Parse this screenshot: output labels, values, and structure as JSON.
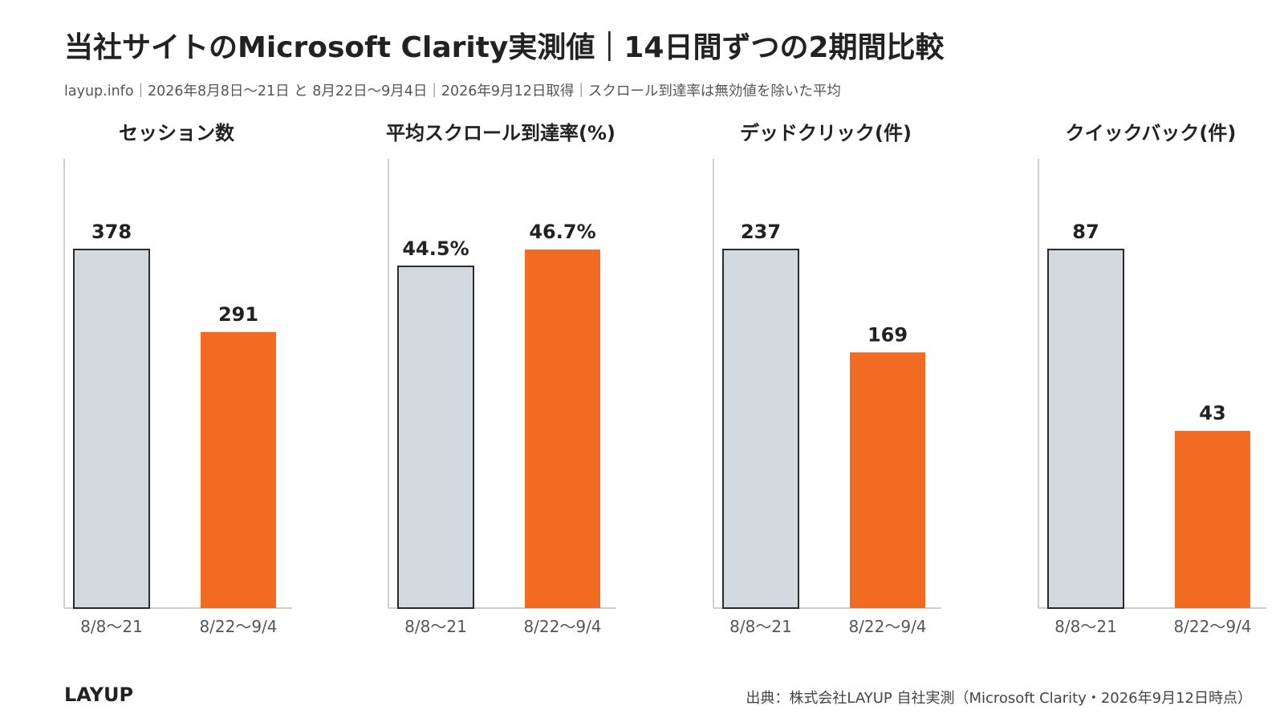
{
  "header": {
    "title": "当社サイトのMicrosoft Clarity実測値｜14日間ずつの2期間比較",
    "subtitle": "layup.info｜2026年8月8日〜21日 と 8月22日〜9月4日｜2026年9月12日取得｜スクロール到達率は無効値を除いた平均"
  },
  "footer": {
    "brand": "LAYUP",
    "source": "出典：株式会社LAYUP 自社実測（Microsoft Clarity・2026年9月12日時点）"
  },
  "colors": {
    "period1": "#d4d8df",
    "period2": "#f26b22",
    "bar_stroke": "#2b2b2b",
    "axis": "#cfcfcf"
  },
  "chart_data": [
    {
      "type": "bar",
      "title": "セッション数",
      "categories": [
        "8/8〜21",
        "8/22〜9/4"
      ],
      "values": [
        378,
        291
      ],
      "value_labels": [
        "378",
        "291"
      ],
      "ylim": [
        0,
        378
      ]
    },
    {
      "type": "bar",
      "title": "平均スクロール到達率(%)",
      "categories": [
        "8/8〜21",
        "8/22〜9/4"
      ],
      "values": [
        44.5,
        46.7
      ],
      "value_labels": [
        "44.5%",
        "46.7%"
      ],
      "ylim": [
        0,
        46.7
      ]
    },
    {
      "type": "bar",
      "title": "デッドクリック(件)",
      "categories": [
        "8/8〜21",
        "8/22〜9/4"
      ],
      "values": [
        237,
        169
      ],
      "value_labels": [
        "237",
        "169"
      ],
      "ylim": [
        0,
        237
      ]
    },
    {
      "type": "bar",
      "title": "クイックバック(件)",
      "categories": [
        "8/8〜21",
        "8/22〜9/4"
      ],
      "values": [
        87,
        43
      ],
      "value_labels": [
        "87",
        "43"
      ],
      "ylim": [
        0,
        87
      ]
    }
  ]
}
